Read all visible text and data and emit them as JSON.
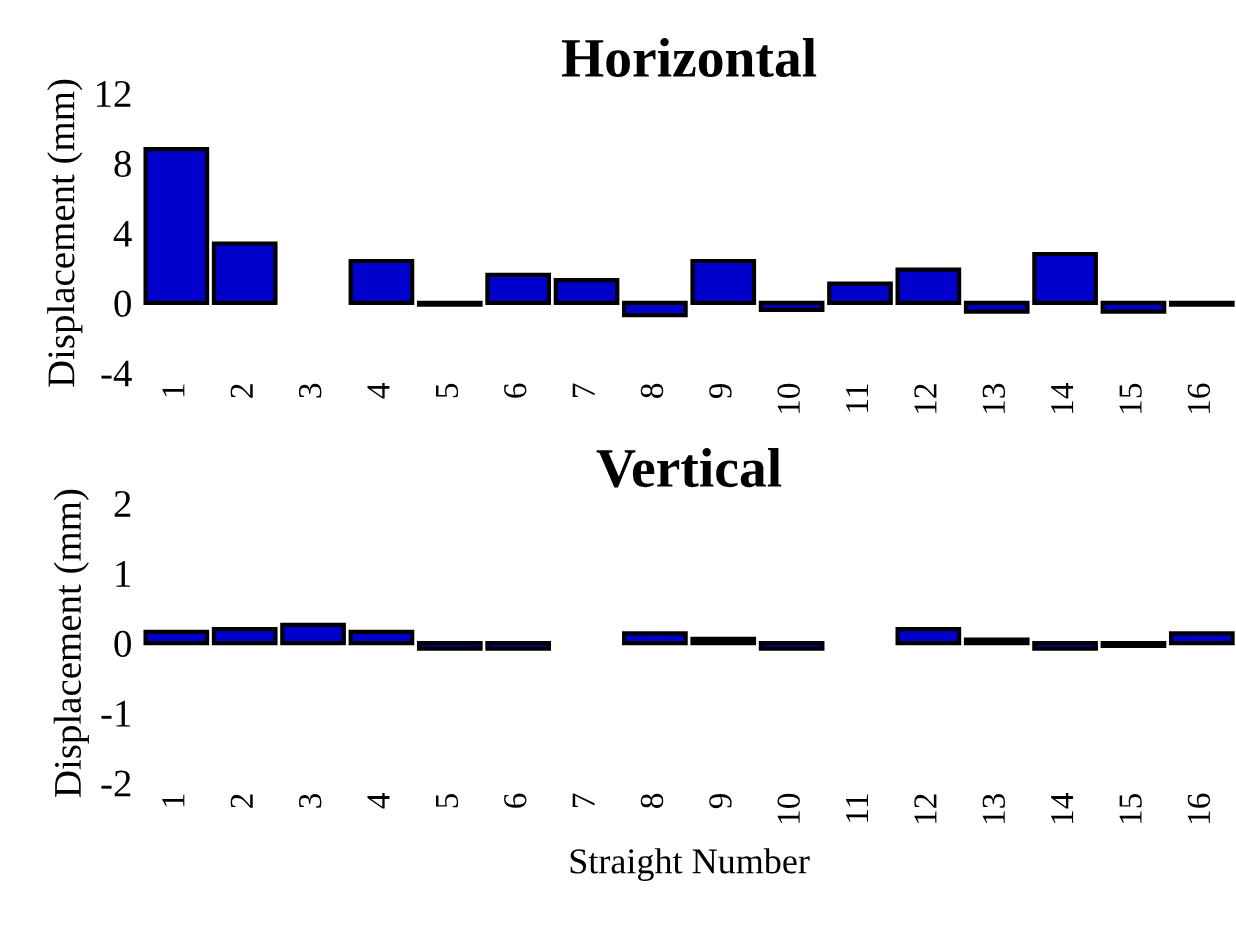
{
  "chart_data": [
    {
      "type": "bar",
      "title": "Horizontal",
      "ylabel": "Displacement (mm)",
      "categories": [
        "1",
        "2",
        "3",
        "4",
        "5",
        "6",
        "7",
        "8",
        "9",
        "10",
        "11",
        "12",
        "13",
        "14",
        "15",
        "16"
      ],
      "series": [
        {
          "color": "#0000cc",
          "values": [
            8.8,
            3.4,
            null,
            2.4,
            -0.1,
            1.6,
            1.3,
            -0.7,
            2.4,
            -0.4,
            1.1,
            1.9,
            -0.5,
            2.8,
            -0.5,
            -0.1
          ]
        }
      ],
      "ylim": [
        -4,
        12
      ],
      "yticks": [
        -4,
        0,
        4,
        8,
        12
      ],
      "grid": false,
      "legend": false
    },
    {
      "type": "bar",
      "title": "Vertical",
      "ylabel": "Displacement (mm)",
      "xlabel": "Straight Number",
      "categories": [
        "1",
        "2",
        "3",
        "4",
        "5",
        "6",
        "7",
        "8",
        "9",
        "10",
        "11",
        "12",
        "13",
        "14",
        "15",
        "16"
      ],
      "series": [
        {
          "color": "#0000cc",
          "values": [
            0.16,
            0.2,
            0.26,
            0.16,
            -0.08,
            -0.08,
            null,
            0.14,
            0.06,
            -0.08,
            null,
            0.2,
            0.05,
            -0.08,
            -0.04,
            0.14
          ]
        }
      ],
      "ylim": [
        -2,
        2
      ],
      "yticks": [
        -2,
        -1,
        0,
        1,
        2
      ],
      "grid": false,
      "legend": false
    }
  ]
}
